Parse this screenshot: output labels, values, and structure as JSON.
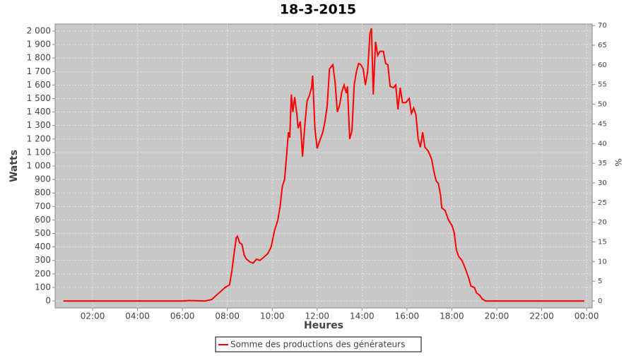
{
  "chart_data": {
    "type": "line",
    "title": "18-3-2015",
    "x_label": "Heures",
    "y_label": "Watts",
    "y2_label": "%",
    "x": [
      0.7,
      6.0,
      6.3,
      7.0,
      7.3,
      7.5,
      7.7,
      7.9,
      8.1,
      8.2,
      8.3,
      8.4,
      8.45,
      8.55,
      8.65,
      8.75,
      8.85,
      9.0,
      9.15,
      9.3,
      9.45,
      9.6,
      9.8,
      9.95,
      10.1,
      10.25,
      10.35,
      10.45,
      10.55,
      10.65,
      10.72,
      10.78,
      10.85,
      10.92,
      11.0,
      11.1,
      11.15,
      11.25,
      11.35,
      11.45,
      11.55,
      11.65,
      11.75,
      11.8,
      11.9,
      12.0,
      12.1,
      12.25,
      12.35,
      12.45,
      12.55,
      12.7,
      12.8,
      12.9,
      13.0,
      13.1,
      13.2,
      13.3,
      13.35,
      13.45,
      13.55,
      13.65,
      13.75,
      13.85,
      13.95,
      14.05,
      14.15,
      14.25,
      14.35,
      14.42,
      14.5,
      14.6,
      14.7,
      14.8,
      14.95,
      15.05,
      15.15,
      15.25,
      15.4,
      15.5,
      15.6,
      15.7,
      15.8,
      15.95,
      16.1,
      16.2,
      16.3,
      16.4,
      16.5,
      16.6,
      16.7,
      16.8,
      16.95,
      17.1,
      17.2,
      17.3,
      17.4,
      17.5,
      17.55,
      17.7,
      17.85,
      18.0,
      18.1,
      18.2,
      18.3,
      18.45,
      18.6,
      18.75,
      18.85,
      19.0,
      19.1,
      19.25,
      19.35,
      19.5,
      23.9
    ],
    "series": [
      {
        "name": "Somme des productions des  générateurs",
        "color": "#ff0000",
        "values": [
          0,
          0,
          3,
          0,
          10,
          40,
          70,
          100,
          120,
          220,
          350,
          470,
          480,
          430,
          420,
          340,
          310,
          290,
          280,
          310,
          300,
          320,
          350,
          400,
          520,
          600,
          700,
          850,
          900,
          1100,
          1250,
          1210,
          1530,
          1400,
          1510,
          1380,
          1280,
          1330,
          1070,
          1300,
          1480,
          1520,
          1580,
          1670,
          1280,
          1130,
          1180,
          1250,
          1330,
          1450,
          1720,
          1750,
          1620,
          1400,
          1450,
          1550,
          1600,
          1540,
          1590,
          1200,
          1260,
          1600,
          1700,
          1760,
          1750,
          1720,
          1600,
          1700,
          1980,
          2020,
          1530,
          1920,
          1820,
          1850,
          1850,
          1760,
          1750,
          1590,
          1580,
          1600,
          1420,
          1580,
          1470,
          1470,
          1500,
          1390,
          1430,
          1380,
          1200,
          1140,
          1250,
          1140,
          1110,
          1050,
          960,
          890,
          870,
          780,
          690,
          670,
          600,
          560,
          510,
          380,
          330,
          300,
          240,
          170,
          110,
          100,
          60,
          40,
          15,
          0,
          0
        ]
      }
    ],
    "xlim": [
      0.33,
      24.25
    ],
    "xticks": [
      {
        "value": 2,
        "label": "02:00"
      },
      {
        "value": 4,
        "label": "04:00"
      },
      {
        "value": 6,
        "label": "06:00"
      },
      {
        "value": 8,
        "label": "08:00"
      },
      {
        "value": 10,
        "label": "10:00"
      },
      {
        "value": 12,
        "label": "12:00"
      },
      {
        "value": 14,
        "label": "14:00"
      },
      {
        "value": 16,
        "label": "16:00"
      },
      {
        "value": 18,
        "label": "18:00"
      },
      {
        "value": 20,
        "label": "20:00"
      },
      {
        "value": 22,
        "label": "22:00"
      },
      {
        "value": 24,
        "label": "00:00"
      }
    ],
    "ylim": [
      -52,
      2052
    ],
    "yticks": [
      0,
      100,
      200,
      300,
      400,
      500,
      600,
      700,
      800,
      900,
      {
        "value": 1000,
        "label": "1 000"
      },
      {
        "value": 1100,
        "label": "1 100"
      },
      {
        "value": 1200,
        "label": "1 200"
      },
      {
        "value": 1300,
        "label": "1 300"
      },
      {
        "value": 1400,
        "label": "1 400"
      },
      {
        "value": 1500,
        "label": "1 500"
      },
      {
        "value": 1600,
        "label": "1 600"
      },
      {
        "value": 1700,
        "label": "1 700"
      },
      {
        "value": 1800,
        "label": "1 800"
      },
      {
        "value": 1900,
        "label": "1 900"
      },
      {
        "value": 2000,
        "label": "2 000"
      }
    ],
    "y2lim": [
      -1.8,
      70.4
    ],
    "y2ticks": [
      0,
      5,
      10,
      15,
      20,
      25,
      30,
      35,
      40,
      45,
      50,
      55,
      60,
      65,
      70
    ],
    "grid": true,
    "legend": "bottom"
  }
}
